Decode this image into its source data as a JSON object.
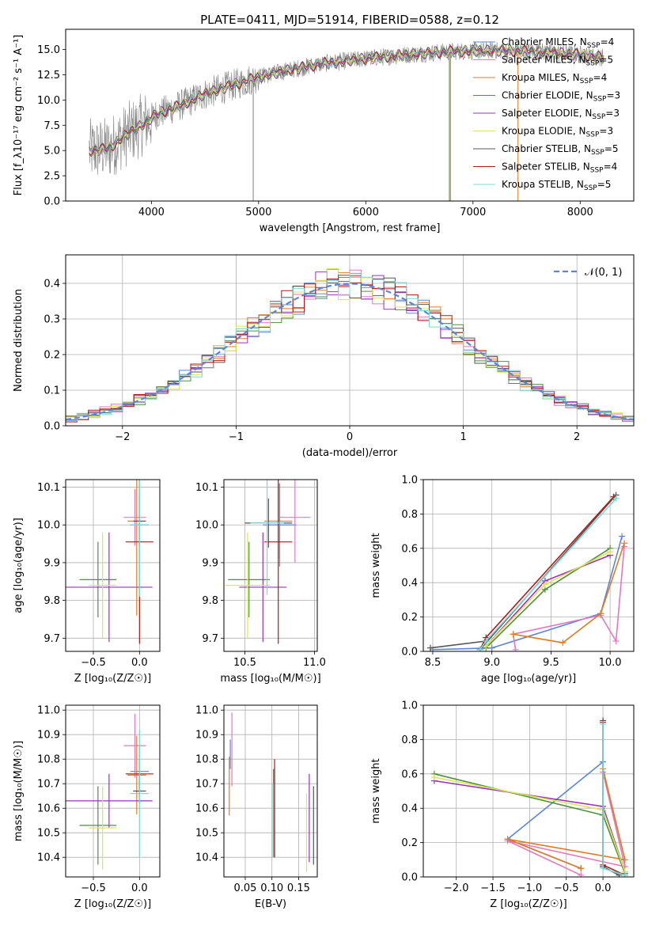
{
  "figure": {
    "title": "PLATE=0411, MJD=51914, FIBERID=0588, z=0.12"
  },
  "colors": {
    "Chabrier MILES": "#5b86d6",
    "Salpeter MILES": "#e377c2",
    "Kroupa MILES": "#e07b22",
    "Chabrier ELODIE": "#4f8f3f",
    "Salpeter ELODIE": "#9b30c2",
    "Kroupa ELODIE": "#d9e84a",
    "Chabrier STELIB": "#555555",
    "Salpeter STELIB": "#b01919",
    "Kroupa STELIB": "#7ad9d9",
    "data": "#808080",
    "normal": "#5b86d6",
    "grid": "#b0b0b0"
  },
  "chart_data": [
    {
      "id": "spectrum",
      "type": "line",
      "xlabel": "wavelength [Angstrom, rest frame]",
      "ylabel": "Flux [f_λ10⁻¹⁷ erg cm⁻² s⁻¹ A⁻¹]",
      "xlim": [
        3200,
        8500
      ],
      "ylim": [
        0,
        17
      ],
      "xticks": [
        4000,
        5000,
        6000,
        7000,
        8000
      ],
      "yticks": [
        0.0,
        2.5,
        5.0,
        7.5,
        10.0,
        12.5,
        15.0
      ],
      "grid": false,
      "legend_position": "upper-right",
      "legend": [
        {
          "model": "Chabrier MILES",
          "n": "4"
        },
        {
          "model": "Salpeter MILES",
          "n": "5"
        },
        {
          "model": "Kroupa MILES",
          "n": "4"
        },
        {
          "model": "Chabrier ELODIE",
          "n": "3"
        },
        {
          "model": "Salpeter ELODIE",
          "n": "3"
        },
        {
          "model": "Kroupa ELODIE",
          "n": "3"
        },
        {
          "model": "Chabrier STELIB",
          "n": "5"
        },
        {
          "model": "Salpeter STELIB",
          "n": "4"
        },
        {
          "model": "Kroupa STELIB",
          "n": "5"
        }
      ],
      "continuum": {
        "x": [
          3420,
          3600,
          3800,
          3950,
          4050,
          4300,
          4500,
          4800,
          5000,
          5300,
          5600,
          6000,
          6400,
          6800,
          7200,
          7600,
          8000,
          8220
        ],
        "y": [
          5.0,
          5.2,
          6.8,
          7.8,
          8.6,
          9.6,
          10.6,
          11.6,
          12.3,
          13.0,
          13.6,
          14.1,
          14.5,
          14.8,
          14.9,
          14.8,
          14.5,
          14.2
        ]
      }
    },
    {
      "id": "residuals",
      "type": "step",
      "xlabel": "(data-model)/error",
      "ylabel": "Normed distribution",
      "xlim": [
        -2.5,
        2.5
      ],
      "ylim": [
        0,
        0.48
      ],
      "xticks": [
        -2,
        -1,
        0,
        1,
        2
      ],
      "yticks": [
        0.0,
        0.1,
        0.2,
        0.3,
        0.4
      ],
      "grid": true,
      "bin_width": 0.1,
      "legend_position": "upper-right",
      "legend": "𝒩(0, 1)"
    },
    {
      "id": "age-vs-Z",
      "type": "errorbar",
      "xlabel": "Z [log₁₀(Z/Z☉)]",
      "ylabel": "age  [log₁₀(age/yr)]",
      "xlim": [
        -0.8,
        0.22
      ],
      "ylim": [
        9.665,
        10.12
      ],
      "xticks": [
        -0.5,
        0.0
      ],
      "yticks": [
        9.7,
        9.8,
        9.9,
        10.0,
        10.1
      ],
      "grid": true,
      "points": [
        {
          "model": "Chabrier MILES",
          "x": 0.0,
          "xerr": 0.1,
          "y": 10.0,
          "yerr": 0.02
        },
        {
          "model": "Salpeter MILES",
          "x": -0.05,
          "xerr": 0.12,
          "y": 10.02,
          "yerr": 0.075
        },
        {
          "model": "Kroupa MILES",
          "x": -0.03,
          "xerr": 0.1,
          "y": 10.01,
          "yerr": 0.25
        },
        {
          "model": "Chabrier ELODIE",
          "x": -0.45,
          "xerr": 0.2,
          "y": 9.855,
          "yerr": 0.1
        },
        {
          "model": "Salpeter ELODIE",
          "x": -0.33,
          "xerr": 0.47,
          "y": 9.835,
          "yerr": 0.145
        },
        {
          "model": "Kroupa ELODIE",
          "x": -0.4,
          "xerr": 0.15,
          "y": 9.84,
          "yerr": 0.14
        },
        {
          "model": "Chabrier STELIB",
          "x": 0.0,
          "xerr": 0.07,
          "y": 10.01,
          "yerr": 0.065
        },
        {
          "model": "Salpeter STELIB",
          "x": 0.0,
          "xerr": 0.15,
          "y": 9.955,
          "yerr": 0.27
        },
        {
          "model": "Kroupa STELIB",
          "x": 0.0,
          "xerr": 0.1,
          "y": 10.0,
          "yerr": 0.19
        }
      ]
    },
    {
      "id": "age-vs-mass",
      "type": "errorbar",
      "xlabel": "mass [log₁₀(M/M☉)]",
      "ylabel": "",
      "xlim": [
        10.35,
        11.02
      ],
      "ylim": [
        9.665,
        10.12
      ],
      "xticks": [
        10.5,
        11.0
      ],
      "yticks": [
        9.7,
        9.8,
        9.9,
        10.0,
        10.1
      ],
      "grid": true,
      "points": [
        {
          "model": "Chabrier MILES",
          "x": 10.75,
          "xerr": 0.12,
          "y": 10.0,
          "yerr": 0.11
        },
        {
          "model": "Salpeter MILES",
          "x": 10.86,
          "xerr": 0.11,
          "y": 10.02,
          "yerr": 0.12
        },
        {
          "model": "Kroupa MILES",
          "x": 10.74,
          "xerr": 0.1,
          "y": 10.01,
          "yerr": 0.1
        },
        {
          "model": "Chabrier ELODIE",
          "x": 10.53,
          "xerr": 0.15,
          "y": 9.855,
          "yerr": 0.1
        },
        {
          "model": "Salpeter ELODIE",
          "x": 10.63,
          "xerr": 0.17,
          "y": 9.835,
          "yerr": 0.145
        },
        {
          "model": "Kroupa ELODIE",
          "x": 10.52,
          "xerr": 0.16,
          "y": 9.84,
          "yerr": 0.14
        },
        {
          "model": "Chabrier STELIB",
          "x": 10.67,
          "xerr": 0.17,
          "y": 10.005,
          "yerr": 0.065
        },
        {
          "model": "Salpeter STELIB",
          "x": 10.74,
          "xerr": 0.1,
          "y": 9.955,
          "yerr": 0.27
        },
        {
          "model": "Kroupa STELIB",
          "x": 10.66,
          "xerr": 0.12,
          "y": 10.005,
          "yerr": 0.19
        }
      ]
    },
    {
      "id": "weight-vs-age",
      "type": "line",
      "xlabel": "age  [log₁₀(age/yr)]",
      "ylabel": "mass weight",
      "xlim": [
        8.42,
        10.2
      ],
      "ylim": [
        0,
        1.0
      ],
      "xticks": [
        8.5,
        9.0,
        9.5,
        10.0
      ],
      "yticks": [
        0.0,
        0.2,
        0.4,
        0.6,
        0.8,
        1.0
      ],
      "grid": true,
      "series": [
        {
          "model": "Chabrier MILES",
          "x": [
            10.1,
            9.92,
            9.0,
            8.5
          ],
          "y": [
            0.67,
            0.22,
            0.02,
            0.01
          ]
        },
        {
          "model": "Salpeter MILES",
          "x": [
            10.12,
            10.05,
            9.92,
            9.18,
            9.2
          ],
          "y": [
            0.61,
            0.06,
            0.21,
            0.1,
            0.01
          ]
        },
        {
          "model": "Kroupa MILES",
          "x": [
            10.12,
            9.92,
            9.6,
            9.18
          ],
          "y": [
            0.63,
            0.22,
            0.05,
            0.1
          ]
        },
        {
          "model": "Chabrier ELODIE",
          "x": [
            10.0,
            9.45,
            8.95
          ],
          "y": [
            0.6,
            0.36,
            0.02
          ]
        },
        {
          "model": "Salpeter ELODIE",
          "x": [
            10.0,
            9.45,
            8.95
          ],
          "y": [
            0.56,
            0.41,
            0.03
          ]
        },
        {
          "model": "Kroupa ELODIE",
          "x": [
            10.0,
            9.45,
            8.95
          ],
          "y": [
            0.58,
            0.39,
            0.03
          ]
        },
        {
          "model": "Chabrier STELIB",
          "x": [
            10.05,
            8.9,
            8.95,
            8.48
          ],
          "y": [
            0.91,
            0.01,
            0.06,
            0.02
          ]
        },
        {
          "model": "Salpeter STELIB",
          "x": [
            10.03,
            8.95,
            8.9
          ],
          "y": [
            0.9,
            0.08,
            0.01
          ]
        },
        {
          "model": "Kroupa STELIB",
          "x": [
            10.05,
            8.95,
            8.9
          ],
          "y": [
            0.89,
            0.06,
            0.01
          ]
        }
      ]
    },
    {
      "id": "mass-vs-Z",
      "type": "errorbar",
      "xlabel": "Z [log₁₀(Z/Z☉)]",
      "ylabel": "mass [log₁₀(M/M☉)]",
      "xlim": [
        -0.8,
        0.22
      ],
      "ylim": [
        10.32,
        11.02
      ],
      "xticks": [
        -0.5,
        0.0
      ],
      "yticks": [
        10.4,
        10.5,
        10.6,
        10.7,
        10.8,
        10.9,
        11.0
      ],
      "grid": true,
      "points": [
        {
          "model": "Chabrier MILES",
          "x": 0.0,
          "xerr": 0.1,
          "y": 10.75,
          "yerr": 0.1
        },
        {
          "model": "Salpeter MILES",
          "x": -0.05,
          "xerr": 0.12,
          "y": 10.855,
          "yerr": 0.13
        },
        {
          "model": "Kroupa MILES",
          "x": -0.03,
          "xerr": 0.1,
          "y": 10.735,
          "yerr": 0.16
        },
        {
          "model": "Chabrier ELODIE",
          "x": -0.45,
          "xerr": 0.2,
          "y": 10.53,
          "yerr": 0.16
        },
        {
          "model": "Salpeter ELODIE",
          "x": -0.33,
          "xerr": 0.47,
          "y": 10.63,
          "yerr": 0.11
        },
        {
          "model": "Kroupa ELODIE",
          "x": -0.4,
          "xerr": 0.15,
          "y": 10.52,
          "yerr": 0.17
        },
        {
          "model": "Chabrier STELIB",
          "x": 0.0,
          "xerr": 0.07,
          "y": 10.67,
          "yerr": 0.05
        },
        {
          "model": "Salpeter STELIB",
          "x": 0.0,
          "xerr": 0.15,
          "y": 10.74,
          "yerr": 0.06
        },
        {
          "model": "Kroupa STELIB",
          "x": 0.0,
          "xerr": 0.1,
          "y": 10.66,
          "yerr": 0.26
        }
      ]
    },
    {
      "id": "mass-vs-ebv",
      "type": "errorbar",
      "xlabel": "E(B-V)",
      "ylabel": "",
      "xlim": [
        0.01,
        0.185
      ],
      "ylim": [
        10.32,
        11.02
      ],
      "xticks": [
        0.05,
        0.1,
        0.15
      ],
      "yticks": [
        10.4,
        10.5,
        10.6,
        10.7,
        10.8,
        10.9,
        11.0
      ],
      "grid": true,
      "points": [
        {
          "model": "Chabrier MILES",
          "x": 0.022,
          "y": 10.82,
          "yerr": 0.06
        },
        {
          "model": "Salpeter MILES",
          "x": 0.025,
          "y": 10.84,
          "yerr": 0.15
        },
        {
          "model": "Kroupa MILES",
          "x": 0.02,
          "y": 10.69,
          "yerr": 0.12
        },
        {
          "model": "Chabrier ELODIE",
          "x": 0.103,
          "y": 10.58,
          "yerr": 0.18
        },
        {
          "model": "Salpeter ELODIE",
          "x": 0.17,
          "y": 10.56,
          "yerr": 0.18
        },
        {
          "model": "Kroupa ELODIE",
          "x": 0.165,
          "y": 10.5,
          "yerr": 0.16
        },
        {
          "model": "Chabrier STELIB",
          "x": 0.178,
          "y": 10.53,
          "yerr": 0.16
        },
        {
          "model": "Salpeter STELIB",
          "x": 0.105,
          "y": 10.6,
          "yerr": 0.2
        },
        {
          "model": "Kroupa STELIB",
          "x": 0.102,
          "y": 10.55,
          "yerr": 0.15
        }
      ]
    },
    {
      "id": "weight-vs-Z",
      "type": "line",
      "xlabel": "Z [log₁₀(Z/Z☉)]",
      "ylabel": "mass weight",
      "xlim": [
        -2.45,
        0.42
      ],
      "ylim": [
        0,
        1.0
      ],
      "xticks": [
        -2.0,
        -1.5,
        -1.0,
        -0.5,
        0.0
      ],
      "yticks": [
        0.0,
        0.2,
        0.4,
        0.6,
        0.8,
        1.0
      ],
      "grid": true,
      "series": [
        {
          "model": "Chabrier MILES",
          "x": [
            0.0,
            -1.3,
            -0.3
          ],
          "y": [
            0.67,
            0.22,
            0.05
          ]
        },
        {
          "model": "Salpeter MILES",
          "x": [
            0.0,
            0.3,
            -1.3,
            -0.3
          ],
          "y": [
            0.61,
            0.06,
            0.21,
            0.01
          ]
        },
        {
          "model": "Kroupa MILES",
          "x": [
            0.0,
            0.3,
            -1.3,
            -0.3
          ],
          "y": [
            0.63,
            0.1,
            0.22,
            0.05
          ]
        },
        {
          "model": "Chabrier ELODIE",
          "x": [
            -2.3,
            0.0,
            0.3
          ],
          "y": [
            0.6,
            0.36,
            0.02
          ]
        },
        {
          "model": "Salpeter ELODIE",
          "x": [
            -2.3,
            0.0,
            0.3
          ],
          "y": [
            0.56,
            0.41,
            0.03
          ]
        },
        {
          "model": "Kroupa ELODIE",
          "x": [
            -2.3,
            0.0,
            0.3
          ],
          "y": [
            0.58,
            0.39,
            0.03
          ]
        },
        {
          "model": "Chabrier STELIB",
          "x": [
            0.0,
            0.0,
            0.22
          ],
          "y": [
            0.91,
            0.06,
            0.01
          ]
        },
        {
          "model": "Salpeter STELIB",
          "x": [
            0.0,
            0.0,
            0.3
          ],
          "y": [
            0.9,
            0.07,
            0.01
          ]
        },
        {
          "model": "Kroupa STELIB",
          "x": [
            0.0,
            0.0,
            0.3
          ],
          "y": [
            0.89,
            0.05,
            0.01
          ]
        }
      ]
    }
  ]
}
